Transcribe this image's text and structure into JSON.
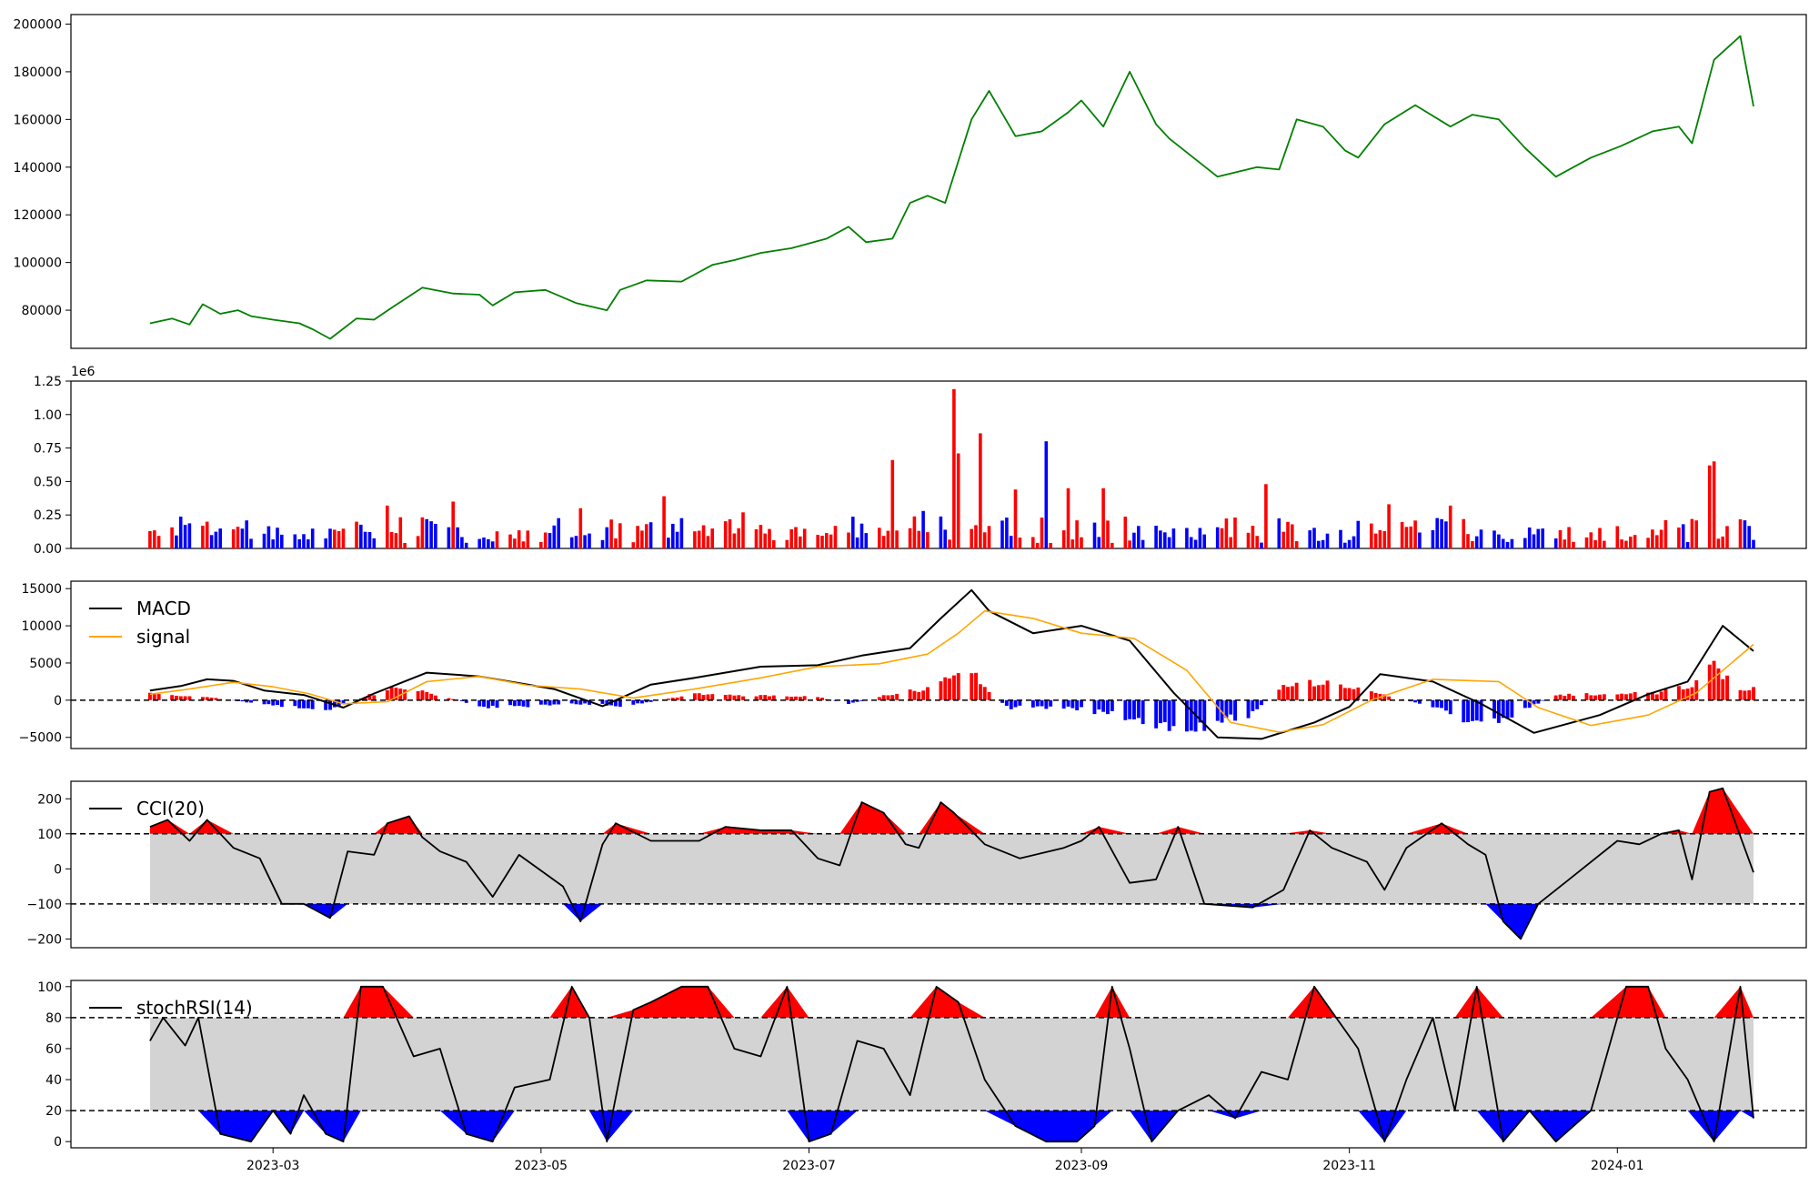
{
  "figure": {
    "x_tick_labels": [
      "2023-03",
      "2023-05",
      "2023-07",
      "2023-09",
      "2023-11",
      "2024-01"
    ],
    "x_tick_dates": [
      "2023-03-01",
      "2023-05-01",
      "2023-07-01",
      "2023-09-01",
      "2023-11-01",
      "2024-01-01"
    ],
    "x_range": [
      "2023-01-14",
      "2024-02-13"
    ],
    "data_start": "2023-02-01",
    "data_end": "2024-02-01"
  },
  "chart_data": [
    {
      "id": "price",
      "type": "line",
      "color": "#008000",
      "ylim": [
        64000,
        204000
      ],
      "y_ticks": [
        80000,
        100000,
        120000,
        140000,
        160000,
        180000,
        200000
      ],
      "y_tick_labels": [
        "80000",
        "100000",
        "120000",
        "140000",
        "160000",
        "180000",
        "200000"
      ],
      "x": [
        "2023-02-01",
        "2023-02-06",
        "2023-02-10",
        "2023-02-13",
        "2023-02-17",
        "2023-02-21",
        "2023-02-24",
        "2023-03-01",
        "2023-03-07",
        "2023-03-10",
        "2023-03-14",
        "2023-03-20",
        "2023-03-24",
        "2023-03-28",
        "2023-04-04",
        "2023-04-11",
        "2023-04-17",
        "2023-04-20",
        "2023-04-25",
        "2023-05-02",
        "2023-05-09",
        "2023-05-16",
        "2023-05-19",
        "2023-05-25",
        "2023-06-02",
        "2023-06-09",
        "2023-06-14",
        "2023-06-20",
        "2023-06-27",
        "2023-07-05",
        "2023-07-10",
        "2023-07-14",
        "2023-07-20",
        "2023-07-24",
        "2023-07-28",
        "2023-08-01",
        "2023-08-07",
        "2023-08-11",
        "2023-08-17",
        "2023-08-23",
        "2023-08-29",
        "2023-09-01",
        "2023-09-06",
        "2023-09-12",
        "2023-09-18",
        "2023-09-21",
        "2023-10-02",
        "2023-10-11",
        "2023-10-16",
        "2023-10-20",
        "2023-10-26",
        "2023-10-31",
        "2023-11-03",
        "2023-11-09",
        "2023-11-16",
        "2023-11-24",
        "2023-11-29",
        "2023-12-05",
        "2023-12-11",
        "2023-12-18",
        "2023-12-26",
        "2024-01-02",
        "2024-01-09",
        "2024-01-15",
        "2024-01-18",
        "2024-01-23",
        "2024-01-29",
        "2024-02-01"
      ],
      "values": [
        74500,
        76500,
        74000,
        82500,
        78500,
        80000,
        77500,
        76000,
        74500,
        72000,
        68000,
        76500,
        76000,
        81000,
        89500,
        87000,
        86500,
        82000,
        87500,
        88500,
        83000,
        80000,
        88500,
        92500,
        92000,
        99000,
        101000,
        104000,
        106000,
        110000,
        115000,
        108500,
        110000,
        125000,
        128000,
        125000,
        160000,
        172000,
        153000,
        155000,
        163000,
        168000,
        157000,
        180000,
        158000,
        152000,
        136000,
        140000,
        139000,
        160000,
        157000,
        147000,
        144000,
        158000,
        166000,
        157000,
        162000,
        160000,
        148000,
        136000,
        144000,
        149000,
        155000,
        157000,
        150000,
        185000,
        195000,
        165500
      ]
    },
    {
      "id": "volume",
      "type": "bar",
      "ylabel": "",
      "offset_label": "1e6",
      "ylim": [
        0,
        1250000
      ],
      "y_ticks": [
        0,
        250000,
        500000,
        750000,
        1000000,
        1250000
      ],
      "y_tick_labels": [
        "0.00",
        "0.25",
        "0.50",
        "0.75",
        "1.00",
        "1.25"
      ],
      "up_color": "#ff0000",
      "down_color": "#0000ff",
      "x": [
        "2023-02-14",
        "2023-03-27",
        "2023-04-11",
        "2023-05-10",
        "2023-05-29",
        "2023-06-16",
        "2023-07-20",
        "2023-07-27",
        "2023-08-03",
        "2023-08-04",
        "2023-08-09",
        "2023-08-17",
        "2023-08-24",
        "2023-08-29",
        "2023-09-06",
        "2023-10-13",
        "2023-11-10",
        "2023-11-24",
        "2024-01-18",
        "2024-01-22",
        "2024-01-23"
      ],
      "values": [
        200000,
        320000,
        350000,
        300000,
        390000,
        270000,
        660000,
        280000,
        1190000,
        710000,
        860000,
        440000,
        800000,
        450000,
        450000,
        480000,
        330000,
        320000,
        220000,
        620000,
        650000
      ],
      "colors": [
        "red",
        "red",
        "red",
        "red",
        "red",
        "red",
        "red",
        "blue",
        "red",
        "red",
        "red",
        "red",
        "blue",
        "red",
        "red",
        "red",
        "red",
        "red",
        "red",
        "red",
        "red"
      ]
    },
    {
      "id": "macd",
      "type": "line",
      "ylim": [
        -6500,
        16000
      ],
      "y_ticks": [
        -5000,
        0,
        5000,
        10000,
        15000
      ],
      "y_tick_labels": [
        "−5000",
        "0",
        "5000",
        "10000",
        "15000"
      ],
      "zero_line": 0,
      "legend": {
        "placement": "upper-left",
        "entries": [
          "MACD",
          "signal"
        ]
      },
      "series": [
        {
          "name": "MACD",
          "color": "#000000",
          "x": [
            "2023-02-01",
            "2023-02-08",
            "2023-02-14",
            "2023-02-20",
            "2023-02-27",
            "2023-03-08",
            "2023-03-17",
            "2023-03-24",
            "2023-04-05",
            "2023-04-17",
            "2023-05-04",
            "2023-05-15",
            "2023-05-26",
            "2023-06-05",
            "2023-06-20",
            "2023-07-03",
            "2023-07-13",
            "2023-07-24",
            "2023-07-31",
            "2023-08-07",
            "2023-08-11",
            "2023-08-21",
            "2023-09-01",
            "2023-09-12",
            "2023-09-22",
            "2023-10-02",
            "2023-10-12",
            "2023-10-24",
            "2023-11-01",
            "2023-11-08",
            "2023-11-20",
            "2023-12-01",
            "2023-12-13",
            "2023-12-28",
            "2024-01-08",
            "2024-01-17",
            "2024-01-25",
            "2024-02-01"
          ],
          "values": [
            1300,
            1900,
            2800,
            2600,
            1300,
            700,
            -1000,
            900,
            3700,
            3200,
            1500,
            -800,
            2100,
            3000,
            4500,
            4700,
            6000,
            7000,
            11000,
            14800,
            12000,
            9000,
            10000,
            8000,
            1000,
            -5000,
            -5200,
            -3000,
            -900,
            3500,
            2500,
            -500,
            -4400,
            -2000,
            800,
            2500,
            10000,
            6600
          ]
        },
        {
          "name": "signal",
          "color": "#ffa500",
          "x": [
            "2023-02-01",
            "2023-02-10",
            "2023-02-20",
            "2023-03-01",
            "2023-03-09",
            "2023-03-17",
            "2023-03-27",
            "2023-04-05",
            "2023-04-17",
            "2023-04-28",
            "2023-05-10",
            "2023-05-22",
            "2023-06-05",
            "2023-06-20",
            "2023-07-03",
            "2023-07-17",
            "2023-07-28",
            "2023-08-04",
            "2023-08-10",
            "2023-08-21",
            "2023-09-01",
            "2023-09-13",
            "2023-09-25",
            "2023-10-05",
            "2023-10-16",
            "2023-10-26",
            "2023-11-06",
            "2023-11-20",
            "2023-12-05",
            "2023-12-14",
            "2023-12-26",
            "2024-01-08",
            "2024-01-19",
            "2024-02-01"
          ],
          "values": [
            800,
            1500,
            2400,
            1800,
            900,
            -500,
            -200,
            2500,
            3200,
            2000,
            1500,
            300,
            1500,
            3000,
            4500,
            4900,
            6200,
            9000,
            12000,
            11000,
            9000,
            8300,
            4000,
            -3000,
            -4300,
            -3300,
            0,
            2800,
            2500,
            -1000,
            -3400,
            -2000,
            1000,
            7500
          ]
        }
      ],
      "histogram": {
        "up_color": "#ff0000",
        "down_color": "#0000ff",
        "x": [
          "2023-02-01",
          "2023-02-14",
          "2023-03-01",
          "2023-03-14",
          "2023-03-27",
          "2023-04-06",
          "2023-04-18",
          "2023-05-10",
          "2023-05-20",
          "2023-06-05",
          "2023-06-20",
          "2023-07-03",
          "2023-07-10",
          "2023-07-20",
          "2023-07-28",
          "2023-08-03",
          "2023-08-08",
          "2023-08-15",
          "2023-08-29",
          "2023-09-10",
          "2023-09-20",
          "2023-09-28",
          "2023-10-09",
          "2023-10-18",
          "2023-10-25",
          "2023-11-08",
          "2023-11-20",
          "2023-11-30",
          "2023-12-08",
          "2023-12-18",
          "2023-12-28",
          "2024-01-10",
          "2024-01-18",
          "2024-01-23",
          "2024-01-29"
        ],
        "values": [
          800,
          400,
          -700,
          -1200,
          1500,
          1000,
          -1000,
          -500,
          -800,
          800,
          600,
          400,
          -500,
          800,
          1500,
          3500,
          3000,
          -1000,
          -1000,
          -2000,
          -3500,
          -3500,
          -2000,
          2200,
          2500,
          800,
          -800,
          -3500,
          -2000,
          700,
          800,
          1000,
          2000,
          4500,
          1500
        ]
      }
    },
    {
      "id": "cci",
      "type": "line",
      "ylim": [
        -225,
        250
      ],
      "y_ticks": [
        -200,
        -100,
        0,
        100,
        200
      ],
      "y_tick_labels": [
        "−200",
        "−100",
        "0",
        "100",
        "200"
      ],
      "bands": [
        -100,
        100
      ],
      "legend": {
        "placement": "upper-left",
        "entries": [
          "CCI(20)"
        ]
      },
      "series": [
        {
          "name": "CCI(20)",
          "color": "#000000",
          "x": [
            "2023-02-01",
            "2023-02-05",
            "2023-02-10",
            "2023-02-14",
            "2023-02-20",
            "2023-02-26",
            "2023-03-03",
            "2023-03-08",
            "2023-03-14",
            "2023-03-18",
            "2023-03-24",
            "2023-03-27",
            "2023-04-01",
            "2023-04-04",
            "2023-04-08",
            "2023-04-14",
            "2023-04-20",
            "2023-04-26",
            "2023-05-06",
            "2023-05-10",
            "2023-05-15",
            "2023-05-18",
            "2023-05-26",
            "2023-05-31",
            "2023-06-06",
            "2023-06-12",
            "2023-06-20",
            "2023-06-27",
            "2023-07-03",
            "2023-07-08",
            "2023-07-13",
            "2023-07-18",
            "2023-07-23",
            "2023-07-26",
            "2023-07-31",
            "2023-08-03",
            "2023-08-10",
            "2023-08-18",
            "2023-08-28",
            "2023-09-01",
            "2023-09-05",
            "2023-09-12",
            "2023-09-18",
            "2023-09-23",
            "2023-09-29",
            "2023-10-10",
            "2023-10-17",
            "2023-10-23",
            "2023-10-28",
            "2023-11-05",
            "2023-11-09",
            "2023-11-14",
            "2023-11-22",
            "2023-11-28",
            "2023-12-02",
            "2023-12-06",
            "2023-12-10",
            "2023-12-14",
            "2023-12-21",
            "2024-01-01",
            "2024-01-06",
            "2024-01-11",
            "2024-01-15",
            "2024-01-18",
            "2024-01-22",
            "2024-01-25",
            "2024-02-01"
          ],
          "values": [
            120,
            140,
            80,
            140,
            60,
            30,
            -100,
            -100,
            -140,
            50,
            40,
            130,
            150,
            90,
            50,
            20,
            -80,
            40,
            -50,
            -150,
            70,
            130,
            80,
            80,
            80,
            120,
            110,
            110,
            30,
            10,
            190,
            160,
            70,
            60,
            190,
            160,
            70,
            30,
            60,
            80,
            120,
            -40,
            -30,
            120,
            -100,
            -110,
            -60,
            110,
            60,
            20,
            -60,
            60,
            130,
            70,
            40,
            -150,
            -200,
            -100,
            -30,
            80,
            70,
            100,
            110,
            -30,
            220,
            230,
            -10
          ]
        }
      ]
    },
    {
      "id": "stochrsi",
      "type": "line",
      "ylim": [
        -4,
        104
      ],
      "y_ticks": [
        0,
        20,
        40,
        60,
        80,
        100
      ],
      "y_tick_labels": [
        "0",
        "20",
        "40",
        "60",
        "80",
        "100"
      ],
      "bands": [
        20,
        80
      ],
      "legend": {
        "placement": "upper-left",
        "entries": [
          "stochRSI(14)"
        ]
      },
      "series": [
        {
          "name": "stochRSI(14)",
          "color": "#000000",
          "x": [
            "2023-02-01",
            "2023-02-04",
            "2023-02-09",
            "2023-02-12",
            "2023-02-17",
            "2023-02-24",
            "2023-03-01",
            "2023-03-05",
            "2023-03-08",
            "2023-03-13",
            "2023-03-17",
            "2023-03-21",
            "2023-03-26",
            "2023-04-02",
            "2023-04-08",
            "2023-04-14",
            "2023-04-20",
            "2023-04-25",
            "2023-05-03",
            "2023-05-08",
            "2023-05-12",
            "2023-05-16",
            "2023-05-22",
            "2023-05-26",
            "2023-06-02",
            "2023-06-08",
            "2023-06-14",
            "2023-06-20",
            "2023-06-26",
            "2023-07-01",
            "2023-07-06",
            "2023-07-12",
            "2023-07-18",
            "2023-07-24",
            "2023-07-30",
            "2023-08-04",
            "2023-08-10",
            "2023-08-17",
            "2023-08-24",
            "2023-08-31",
            "2023-09-04",
            "2023-09-08",
            "2023-09-12",
            "2023-09-17",
            "2023-09-23",
            "2023-09-30",
            "2023-10-06",
            "2023-10-12",
            "2023-10-18",
            "2023-10-24",
            "2023-10-29",
            "2023-11-03",
            "2023-11-09",
            "2023-11-14",
            "2023-11-20",
            "2023-11-25",
            "2023-11-30",
            "2023-12-06",
            "2023-12-12",
            "2023-12-18",
            "2023-12-26",
            "2024-01-03",
            "2024-01-08",
            "2024-01-12",
            "2024-01-17",
            "2024-01-23",
            "2024-01-29",
            "2024-02-01"
          ],
          "values": [
            65,
            80,
            62,
            80,
            5,
            0,
            20,
            5,
            30,
            5,
            0,
            100,
            100,
            55,
            60,
            5,
            0,
            35,
            40,
            100,
            80,
            0,
            85,
            90,
            100,
            100,
            60,
            55,
            100,
            0,
            5,
            65,
            60,
            30,
            100,
            90,
            40,
            10,
            0,
            0,
            10,
            100,
            60,
            0,
            20,
            30,
            15,
            45,
            40,
            100,
            80,
            60,
            0,
            40,
            80,
            20,
            100,
            0,
            20,
            0,
            20,
            100,
            100,
            60,
            40,
            0,
            100,
            15
          ]
        }
      ]
    }
  ]
}
